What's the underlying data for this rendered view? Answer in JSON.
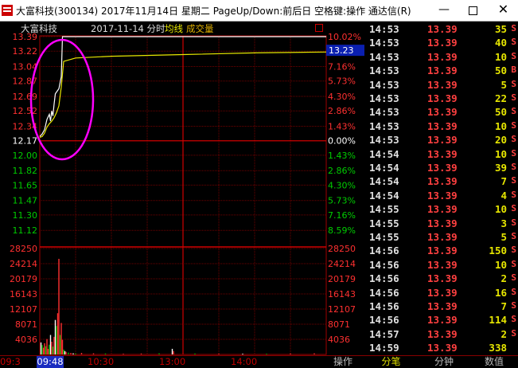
{
  "window": {
    "title": "大富科技(300134) 2017年11月14日 星期二 PageUp/Down:前后日 空格键:操作 通达信(R)",
    "minimize": "—",
    "close": "✕"
  },
  "chart_head": {
    "stock": "大富科技",
    "date": "2017-11-14 分时",
    "avg_label": "均线",
    "vol_label": "成交量"
  },
  "price_axis": {
    "prices": [
      "13.39",
      "13.22",
      "13.04",
      "12.87",
      "12.69",
      "12.52",
      "12.34",
      "12.17",
      "12.00",
      "11.82",
      "11.65",
      "11.47",
      "11.30",
      "11.12"
    ],
    "percents": [
      "10.02%",
      "8.59%",
      "7.16%",
      "5.73%",
      "4.30%",
      "2.86%",
      "1.43%",
      "0.00%",
      "1.43%",
      "2.86%",
      "4.30%",
      "5.73%",
      "7.16%",
      "8.59%"
    ],
    "current_price": "13.23",
    "colors": {
      "up": "#ff3030",
      "base": "#ffffff",
      "down": "#00cc00"
    }
  },
  "volume_axis": {
    "labels": [
      "28250",
      "24214",
      "20179",
      "16143",
      "12107",
      "8071",
      "4036"
    ]
  },
  "time_axis": {
    "start": "09:3",
    "cursor": "09:48",
    "ticks": [
      "10:30",
      "13:00",
      "14:00"
    ]
  },
  "chart_data": {
    "type": "line",
    "x_range": [
      "09:30",
      "15:00"
    ],
    "ylim": [
      11.12,
      13.39
    ],
    "series": [
      {
        "values": [
          [
            0,
            12.22
          ],
          [
            2,
            12.25
          ],
          [
            4,
            12.3
          ],
          [
            6,
            12.42
          ],
          [
            8,
            12.48
          ],
          [
            9,
            12.4
          ],
          [
            10,
            12.52
          ],
          [
            11,
            12.46
          ],
          [
            12,
            12.6
          ],
          [
            13,
            12.72
          ],
          [
            14,
            12.74
          ],
          [
            16,
            12.78
          ],
          [
            18,
            12.92
          ],
          [
            19,
            13.39
          ],
          [
            30,
            13.39
          ],
          [
            60,
            13.39
          ],
          [
            120,
            13.39
          ],
          [
            180,
            13.39
          ],
          [
            240,
            13.39
          ]
        ]
      },
      {
        "values": [
          [
            0,
            12.21
          ],
          [
            2,
            12.22
          ],
          [
            4,
            12.26
          ],
          [
            6,
            12.33
          ],
          [
            8,
            12.37
          ],
          [
            10,
            12.4
          ],
          [
            12,
            12.44
          ],
          [
            14,
            12.5
          ],
          [
            16,
            12.58
          ],
          [
            18,
            12.8
          ],
          [
            19,
            12.95
          ],
          [
            20,
            13.1
          ],
          [
            30,
            13.14
          ],
          [
            60,
            13.16
          ],
          [
            120,
            13.18
          ],
          [
            180,
            13.2
          ],
          [
            240,
            13.21
          ]
        ]
      }
    ],
    "volume": [
      [
        1,
        3200
      ],
      [
        2,
        2500
      ],
      [
        3,
        1800
      ],
      [
        4,
        3000
      ],
      [
        5,
        2200
      ],
      [
        6,
        4100
      ],
      [
        7,
        1500
      ],
      [
        8,
        2600
      ],
      [
        9,
        5200
      ],
      [
        10,
        3400
      ],
      [
        11,
        2100
      ],
      [
        12,
        4700
      ],
      [
        13,
        9200
      ],
      [
        14,
        7600
      ],
      [
        15,
        11000
      ],
      [
        16,
        25500
      ],
      [
        17,
        5200
      ],
      [
        18,
        8400
      ],
      [
        19,
        3900
      ],
      [
        20,
        1300
      ],
      [
        21,
        900
      ],
      [
        22,
        700
      ],
      [
        24,
        500
      ],
      [
        26,
        400
      ],
      [
        28,
        300
      ],
      [
        30,
        250
      ],
      [
        35,
        400
      ],
      [
        45,
        300
      ],
      [
        55,
        250
      ],
      [
        70,
        200
      ],
      [
        85,
        250
      ],
      [
        100,
        300
      ],
      [
        111,
        1500
      ],
      [
        112,
        900
      ],
      [
        130,
        250
      ],
      [
        150,
        200
      ],
      [
        170,
        200
      ],
      [
        190,
        200
      ],
      [
        210,
        250
      ],
      [
        230,
        300
      ]
    ]
  },
  "ticks": [
    {
      "time": "14:53",
      "price": "13.39",
      "vol": "35",
      "dir": "S"
    },
    {
      "time": "14:53",
      "price": "13.39",
      "vol": "40",
      "dir": "S"
    },
    {
      "time": "14:53",
      "price": "13.39",
      "vol": "10",
      "dir": "S"
    },
    {
      "time": "14:53",
      "price": "13.39",
      "vol": "50",
      "dir": "B"
    },
    {
      "time": "14:53",
      "price": "13.39",
      "vol": "5",
      "dir": "S"
    },
    {
      "time": "14:53",
      "price": "13.39",
      "vol": "22",
      "dir": "S"
    },
    {
      "time": "14:53",
      "price": "13.39",
      "vol": "50",
      "dir": "S"
    },
    {
      "time": "14:53",
      "price": "13.39",
      "vol": "10",
      "dir": "S"
    },
    {
      "time": "14:53",
      "price": "13.39",
      "vol": "20",
      "dir": "S"
    },
    {
      "time": "14:54",
      "price": "13.39",
      "vol": "10",
      "dir": "S"
    },
    {
      "time": "14:54",
      "price": "13.39",
      "vol": "39",
      "dir": "S"
    },
    {
      "time": "14:54",
      "price": "13.39",
      "vol": "7",
      "dir": "S"
    },
    {
      "time": "14:54",
      "price": "13.39",
      "vol": "4",
      "dir": "S"
    },
    {
      "time": "14:55",
      "price": "13.39",
      "vol": "10",
      "dir": "S"
    },
    {
      "time": "14:55",
      "price": "13.39",
      "vol": "3",
      "dir": "S"
    },
    {
      "time": "14:55",
      "price": "13.39",
      "vol": "5",
      "dir": "S"
    },
    {
      "time": "14:56",
      "price": "13.39",
      "vol": "150",
      "dir": "S"
    },
    {
      "time": "14:56",
      "price": "13.39",
      "vol": "10",
      "dir": "S"
    },
    {
      "time": "14:56",
      "price": "13.39",
      "vol": "2",
      "dir": "S"
    },
    {
      "time": "14:56",
      "price": "13.39",
      "vol": "16",
      "dir": "S"
    },
    {
      "time": "14:56",
      "price": "13.39",
      "vol": "7",
      "dir": "S"
    },
    {
      "time": "14:56",
      "price": "13.39",
      "vol": "114",
      "dir": "S"
    },
    {
      "time": "14:57",
      "price": "13.39",
      "vol": "2",
      "dir": "S"
    },
    {
      "time": "14:59",
      "price": "13.39",
      "vol": "338",
      "dir": ""
    }
  ],
  "tabs": {
    "operate": "操作",
    "ticks": "分笔",
    "minute": "分钟",
    "data": "数值"
  }
}
